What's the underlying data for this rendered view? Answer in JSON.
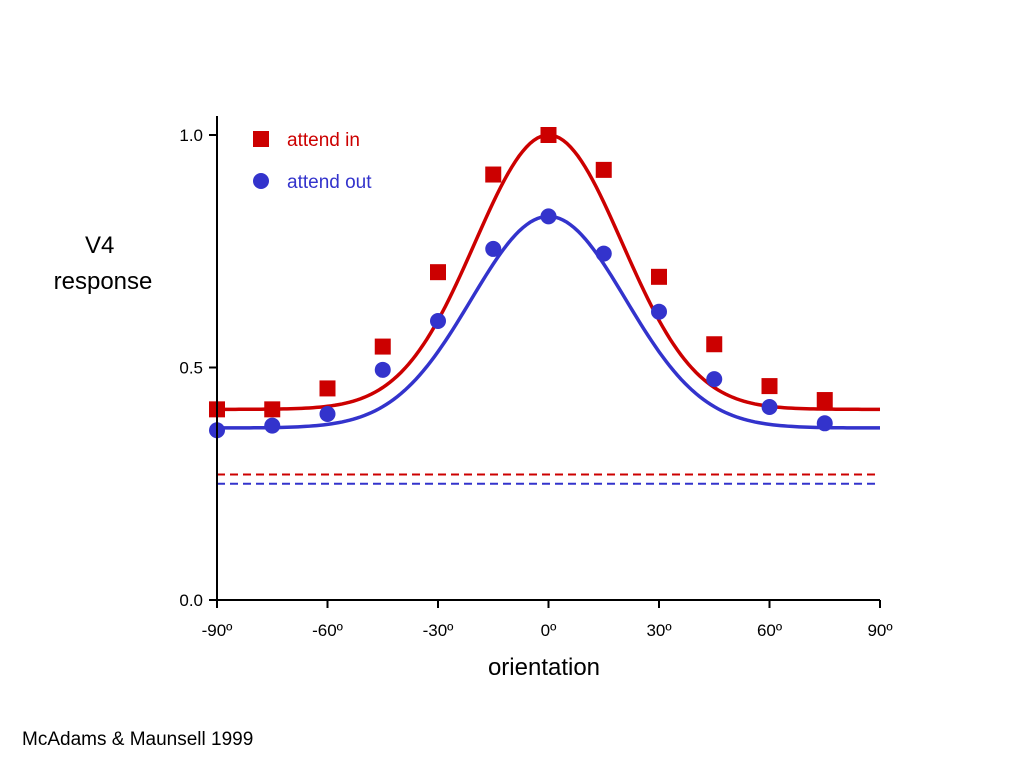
{
  "chart_data": {
    "type": "scatter",
    "title": "",
    "xlabel": "orientation",
    "ylabel_lines": [
      "V4",
      "response"
    ],
    "xlim": [
      -90,
      90
    ],
    "ylim": [
      0,
      1.05
    ],
    "xticks": [
      -90,
      -60,
      -30,
      0,
      30,
      60,
      90
    ],
    "xtick_labels": [
      "-90º",
      "-60º",
      "-30º",
      "0º",
      "30º",
      "60º",
      "90º"
    ],
    "yticks": [
      0,
      0.5,
      1.0
    ],
    "ytick_labels": [
      "0.0",
      "0.5",
      "1.0"
    ],
    "grid": false,
    "legend_position": "top-left",
    "series": [
      {
        "name": "attend in",
        "marker": "square",
        "color": "#cc0000",
        "x": [
          -90,
          -75,
          -60,
          -45,
          -30,
          -15,
          0,
          15,
          30,
          45,
          60,
          75
        ],
        "y": [
          0.41,
          0.41,
          0.455,
          0.545,
          0.705,
          0.915,
          1.0,
          0.925,
          0.695,
          0.55,
          0.46,
          0.43
        ],
        "fit": {
          "baseline": 0.41,
          "amplitude": 0.59,
          "sigma": 20
        },
        "spontaneous_level": 0.27
      },
      {
        "name": "attend out",
        "marker": "circle",
        "color": "#3333cc",
        "x": [
          -90,
          -75,
          -60,
          -45,
          -30,
          -15,
          0,
          15,
          30,
          45,
          60,
          75
        ],
        "y": [
          0.365,
          0.375,
          0.4,
          0.495,
          0.6,
          0.755,
          0.825,
          0.745,
          0.62,
          0.475,
          0.415,
          0.38
        ],
        "fit": {
          "baseline": 0.37,
          "amplitude": 0.455,
          "sigma": 21
        },
        "spontaneous_level": 0.25
      }
    ]
  },
  "citation": "McAdams & Maunsell 1999"
}
